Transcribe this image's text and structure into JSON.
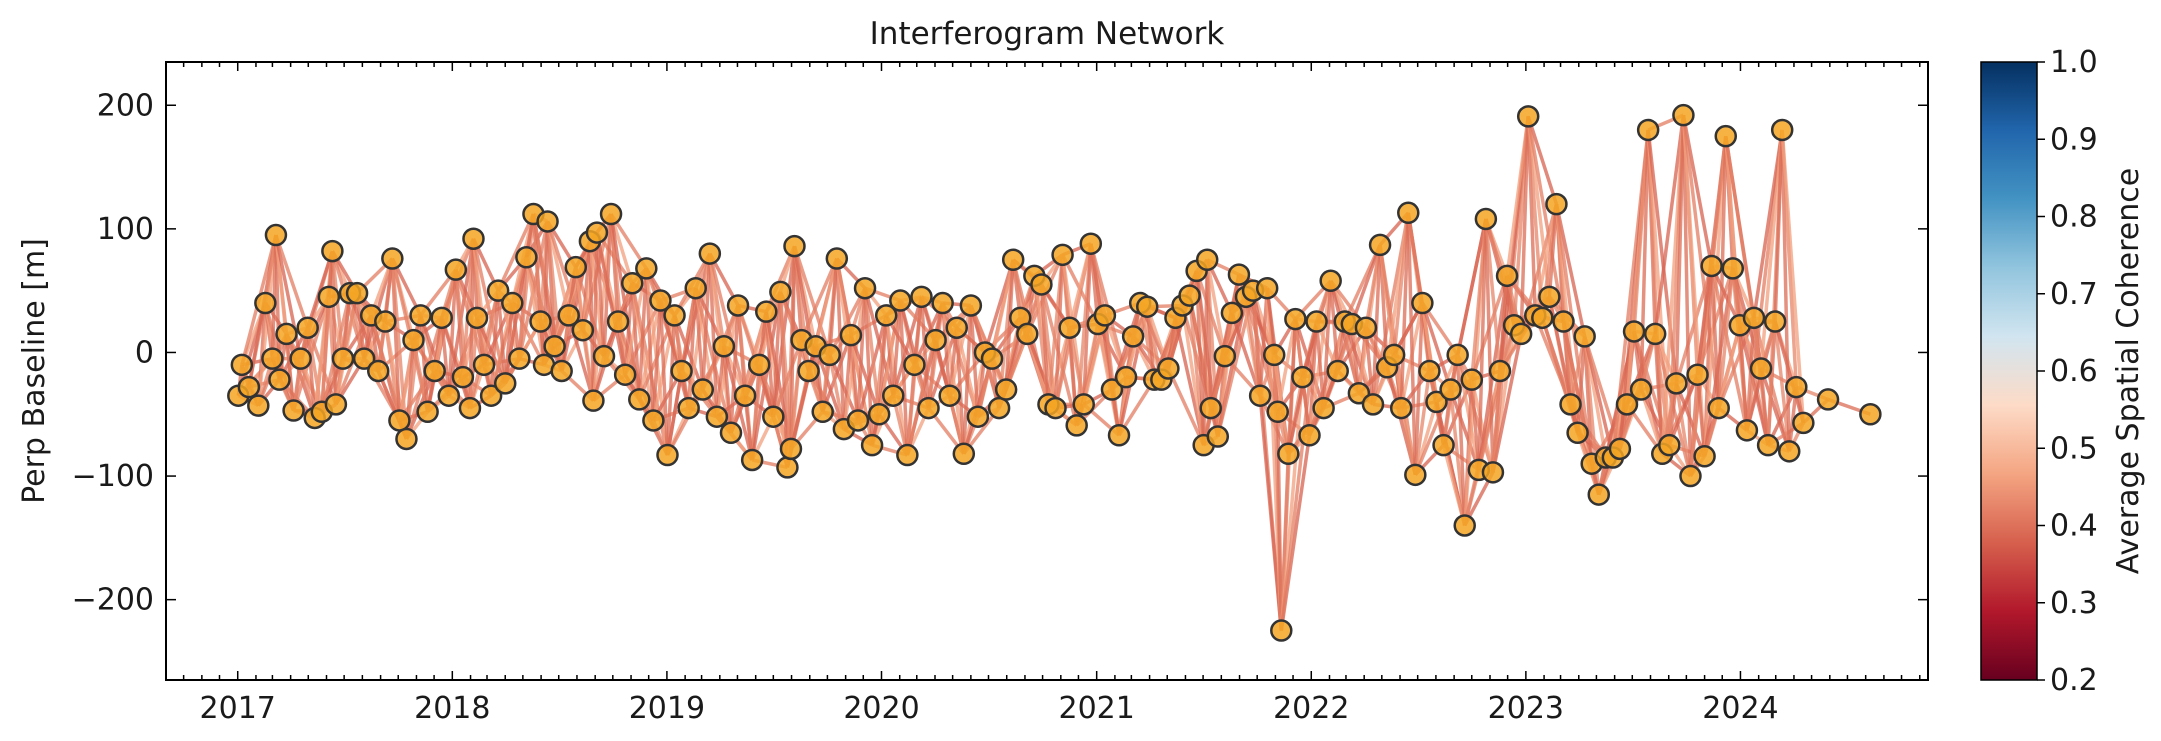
{
  "chart_data": {
    "type": "scatter",
    "title": "Interferogram Network",
    "xlabel": "",
    "ylabel": "Perp Baseline [m]",
    "x_tick_labels": [
      "2017",
      "2018",
      "2019",
      "2020",
      "2021",
      "2022",
      "2023",
      "2024"
    ],
    "y_tick_labels": [
      "200",
      "100",
      "0",
      "−100",
      "−200"
    ],
    "ylim": [
      -265,
      235
    ],
    "xlim": [
      "2016-09-01",
      "2024-11-15"
    ],
    "grid": false,
    "legend": "none",
    "marker_color": "#f5a623",
    "marker_edge_color": "#333333",
    "colorbar": {
      "label": "Average Spatial Coherence",
      "range": [
        0.2,
        1.0
      ],
      "tick_labels": [
        "0.2",
        "0.3",
        "0.4",
        "0.5",
        "0.6",
        "0.7",
        "0.8",
        "0.9",
        "1.0"
      ],
      "colormap": "RdBu",
      "colormap_stops": [
        "#67001f",
        "#b2182b",
        "#d6604d",
        "#f4a582",
        "#fddbc7",
        "#d1e5f0",
        "#92c5de",
        "#4393c3",
        "#2166ac",
        "#053061"
      ]
    },
    "acquisitions": [
      {
        "date": "2017-01-02",
        "y": -35
      },
      {
        "date": "2017-01-08",
        "y": -10
      },
      {
        "date": "2017-01-20",
        "y": -28
      },
      {
        "date": "2017-02-05",
        "y": -43
      },
      {
        "date": "2017-02-17",
        "y": 40
      },
      {
        "date": "2017-03-01",
        "y": -5
      },
      {
        "date": "2017-03-07",
        "y": 95
      },
      {
        "date": "2017-03-13",
        "y": -22
      },
      {
        "date": "2017-03-25",
        "y": 15
      },
      {
        "date": "2017-04-06",
        "y": -47
      },
      {
        "date": "2017-04-18",
        "y": -5
      },
      {
        "date": "2017-04-30",
        "y": 20
      },
      {
        "date": "2017-05-12",
        "y": -53
      },
      {
        "date": "2017-05-24",
        "y": -48
      },
      {
        "date": "2017-06-05",
        "y": 45
      },
      {
        "date": "2017-06-11",
        "y": 82
      },
      {
        "date": "2017-06-17",
        "y": -42
      },
      {
        "date": "2017-06-29",
        "y": -5
      },
      {
        "date": "2017-07-11",
        "y": 48
      },
      {
        "date": "2017-07-23",
        "y": 48
      },
      {
        "date": "2017-08-04",
        "y": -5
      },
      {
        "date": "2017-08-16",
        "y": 30
      },
      {
        "date": "2017-08-28",
        "y": -15
      },
      {
        "date": "2017-09-09",
        "y": 25
      },
      {
        "date": "2017-09-21",
        "y": 76
      },
      {
        "date": "2017-10-03",
        "y": -55
      },
      {
        "date": "2017-10-15",
        "y": -70
      },
      {
        "date": "2017-10-27",
        "y": 10
      },
      {
        "date": "2017-11-08",
        "y": 30
      },
      {
        "date": "2017-11-20",
        "y": -48
      },
      {
        "date": "2017-12-02",
        "y": -15
      },
      {
        "date": "2017-12-14",
        "y": 28
      },
      {
        "date": "2017-12-26",
        "y": -35
      },
      {
        "date": "2018-01-07",
        "y": 67
      },
      {
        "date": "2018-01-19",
        "y": -20
      },
      {
        "date": "2018-01-31",
        "y": -45
      },
      {
        "date": "2018-02-06",
        "y": 92
      },
      {
        "date": "2018-02-12",
        "y": 28
      },
      {
        "date": "2018-02-24",
        "y": -10
      },
      {
        "date": "2018-03-08",
        "y": -35
      },
      {
        "date": "2018-03-20",
        "y": 50
      },
      {
        "date": "2018-04-01",
        "y": -25
      },
      {
        "date": "2018-04-13",
        "y": 40
      },
      {
        "date": "2018-04-25",
        "y": -5
      },
      {
        "date": "2018-05-07",
        "y": 77
      },
      {
        "date": "2018-05-19",
        "y": 112
      },
      {
        "date": "2018-05-31",
        "y": 25
      },
      {
        "date": "2018-06-06",
        "y": -10
      },
      {
        "date": "2018-06-12",
        "y": 106
      },
      {
        "date": "2018-06-24",
        "y": 5
      },
      {
        "date": "2018-07-06",
        "y": -15
      },
      {
        "date": "2018-07-18",
        "y": 30
      },
      {
        "date": "2018-07-30",
        "y": 69
      },
      {
        "date": "2018-08-11",
        "y": 18
      },
      {
        "date": "2018-08-23",
        "y": 90
      },
      {
        "date": "2018-08-29",
        "y": -39
      },
      {
        "date": "2018-09-04",
        "y": 97
      },
      {
        "date": "2018-09-16",
        "y": -3
      },
      {
        "date": "2018-09-28",
        "y": 112
      },
      {
        "date": "2018-10-10",
        "y": 25
      },
      {
        "date": "2018-10-22",
        "y": -18
      },
      {
        "date": "2018-11-03",
        "y": 56
      },
      {
        "date": "2018-11-15",
        "y": -38
      },
      {
        "date": "2018-11-27",
        "y": 68
      },
      {
        "date": "2018-12-09",
        "y": -55
      },
      {
        "date": "2018-12-21",
        "y": 42
      },
      {
        "date": "2019-01-02",
        "y": -83
      },
      {
        "date": "2019-01-14",
        "y": 30
      },
      {
        "date": "2019-01-26",
        "y": -15
      },
      {
        "date": "2019-02-07",
        "y": -45
      },
      {
        "date": "2019-02-19",
        "y": 52
      },
      {
        "date": "2019-03-03",
        "y": -30
      },
      {
        "date": "2019-03-15",
        "y": 80
      },
      {
        "date": "2019-03-27",
        "y": -52
      },
      {
        "date": "2019-04-08",
        "y": 5
      },
      {
        "date": "2019-04-20",
        "y": -65
      },
      {
        "date": "2019-05-02",
        "y": 38
      },
      {
        "date": "2019-05-14",
        "y": -35
      },
      {
        "date": "2019-05-26",
        "y": -87
      },
      {
        "date": "2019-06-07",
        "y": -10
      },
      {
        "date": "2019-06-19",
        "y": 33
      },
      {
        "date": "2019-07-01",
        "y": -52
      },
      {
        "date": "2019-07-13",
        "y": 49
      },
      {
        "date": "2019-07-25",
        "y": -93
      },
      {
        "date": "2019-07-31",
        "y": -78
      },
      {
        "date": "2019-08-06",
        "y": 86
      },
      {
        "date": "2019-08-18",
        "y": 10
      },
      {
        "date": "2019-08-30",
        "y": -15
      },
      {
        "date": "2019-09-11",
        "y": 5
      },
      {
        "date": "2019-09-23",
        "y": -48
      },
      {
        "date": "2019-10-05",
        "y": -2
      },
      {
        "date": "2019-10-17",
        "y": 76
      },
      {
        "date": "2019-10-29",
        "y": -62
      },
      {
        "date": "2019-11-10",
        "y": 14
      },
      {
        "date": "2019-11-22",
        "y": -55
      },
      {
        "date": "2019-12-04",
        "y": 52
      },
      {
        "date": "2019-12-16",
        "y": -75
      },
      {
        "date": "2019-12-28",
        "y": -50
      },
      {
        "date": "2020-01-09",
        "y": 30
      },
      {
        "date": "2020-01-21",
        "y": -35
      },
      {
        "date": "2020-02-02",
        "y": 42
      },
      {
        "date": "2020-02-14",
        "y": -83
      },
      {
        "date": "2020-02-26",
        "y": -10
      },
      {
        "date": "2020-03-09",
        "y": 45
      },
      {
        "date": "2020-03-21",
        "y": -45
      },
      {
        "date": "2020-04-02",
        "y": 10
      },
      {
        "date": "2020-04-14",
        "y": 40
      },
      {
        "date": "2020-04-26",
        "y": -35
      },
      {
        "date": "2020-05-08",
        "y": 20
      },
      {
        "date": "2020-05-20",
        "y": -82
      },
      {
        "date": "2020-06-01",
        "y": 38
      },
      {
        "date": "2020-06-13",
        "y": -52
      },
      {
        "date": "2020-06-25",
        "y": 0
      },
      {
        "date": "2020-07-07",
        "y": -5
      },
      {
        "date": "2020-07-19",
        "y": -45
      },
      {
        "date": "2020-07-31",
        "y": -30
      },
      {
        "date": "2020-08-12",
        "y": 75
      },
      {
        "date": "2020-08-24",
        "y": 28
      },
      {
        "date": "2020-09-05",
        "y": 15
      },
      {
        "date": "2020-09-17",
        "y": 62
      },
      {
        "date": "2020-09-29",
        "y": 55
      },
      {
        "date": "2020-10-11",
        "y": -42
      },
      {
        "date": "2020-10-23",
        "y": -45
      },
      {
        "date": "2020-11-04",
        "y": 79
      },
      {
        "date": "2020-11-16",
        "y": 20
      },
      {
        "date": "2020-11-28",
        "y": -59
      },
      {
        "date": "2020-12-10",
        "y": -42
      },
      {
        "date": "2020-12-22",
        "y": 88
      },
      {
        "date": "2021-01-03",
        "y": 23
      },
      {
        "date": "2021-01-15",
        "y": 30
      },
      {
        "date": "2021-01-27",
        "y": -30
      },
      {
        "date": "2021-02-08",
        "y": -67
      },
      {
        "date": "2021-02-20",
        "y": -20
      },
      {
        "date": "2021-03-04",
        "y": 13
      },
      {
        "date": "2021-03-16",
        "y": 40
      },
      {
        "date": "2021-03-28",
        "y": 37
      },
      {
        "date": "2021-04-09",
        "y": -22
      },
      {
        "date": "2021-04-21",
        "y": -22
      },
      {
        "date": "2021-05-03",
        "y": -13
      },
      {
        "date": "2021-05-15",
        "y": 28
      },
      {
        "date": "2021-05-27",
        "y": 38
      },
      {
        "date": "2021-06-08",
        "y": 46
      },
      {
        "date": "2021-06-20",
        "y": 66
      },
      {
        "date": "2021-07-02",
        "y": -75
      },
      {
        "date": "2021-07-08",
        "y": 75
      },
      {
        "date": "2021-07-14",
        "y": -45
      },
      {
        "date": "2021-07-26",
        "y": -68
      },
      {
        "date": "2021-08-07",
        "y": -3
      },
      {
        "date": "2021-08-19",
        "y": 32
      },
      {
        "date": "2021-08-31",
        "y": 63
      },
      {
        "date": "2021-09-12",
        "y": 45
      },
      {
        "date": "2021-09-24",
        "y": 50
      },
      {
        "date": "2021-10-06",
        "y": -35
      },
      {
        "date": "2021-10-18",
        "y": 52
      },
      {
        "date": "2021-10-30",
        "y": -2
      },
      {
        "date": "2021-11-05",
        "y": -48
      },
      {
        "date": "2021-11-11",
        "y": -225
      },
      {
        "date": "2021-11-23",
        "y": -82
      },
      {
        "date": "2021-12-05",
        "y": 27
      },
      {
        "date": "2021-12-17",
        "y": -20
      },
      {
        "date": "2021-12-29",
        "y": -67
      },
      {
        "date": "2022-01-10",
        "y": 25
      },
      {
        "date": "2022-01-22",
        "y": -45
      },
      {
        "date": "2022-02-03",
        "y": 58
      },
      {
        "date": "2022-02-15",
        "y": -15
      },
      {
        "date": "2022-02-27",
        "y": 25
      },
      {
        "date": "2022-03-11",
        "y": 23
      },
      {
        "date": "2022-03-23",
        "y": -33
      },
      {
        "date": "2022-04-04",
        "y": 20
      },
      {
        "date": "2022-04-16",
        "y": -42
      },
      {
        "date": "2022-04-28",
        "y": 87
      },
      {
        "date": "2022-05-10",
        "y": -12
      },
      {
        "date": "2022-05-22",
        "y": -2
      },
      {
        "date": "2022-06-03",
        "y": -45
      },
      {
        "date": "2022-06-15",
        "y": 113
      },
      {
        "date": "2022-06-27",
        "y": -99
      },
      {
        "date": "2022-07-09",
        "y": 40
      },
      {
        "date": "2022-07-21",
        "y": -15
      },
      {
        "date": "2022-08-02",
        "y": -40
      },
      {
        "date": "2022-08-14",
        "y": -75
      },
      {
        "date": "2022-08-26",
        "y": -30
      },
      {
        "date": "2022-09-07",
        "y": -2
      },
      {
        "date": "2022-09-19",
        "y": -140
      },
      {
        "date": "2022-10-01",
        "y": -22
      },
      {
        "date": "2022-10-13",
        "y": -95
      },
      {
        "date": "2022-10-25",
        "y": 108
      },
      {
        "date": "2022-11-06",
        "y": -97
      },
      {
        "date": "2022-11-18",
        "y": -15
      },
      {
        "date": "2022-11-30",
        "y": 62
      },
      {
        "date": "2022-12-12",
        "y": 22
      },
      {
        "date": "2022-12-24",
        "y": 15
      },
      {
        "date": "2023-01-05",
        "y": 191
      },
      {
        "date": "2023-01-17",
        "y": 30
      },
      {
        "date": "2023-01-29",
        "y": 28
      },
      {
        "date": "2023-02-10",
        "y": 45
      },
      {
        "date": "2023-02-22",
        "y": 120
      },
      {
        "date": "2023-03-06",
        "y": 25
      },
      {
        "date": "2023-03-18",
        "y": -42
      },
      {
        "date": "2023-03-30",
        "y": -65
      },
      {
        "date": "2023-04-11",
        "y": 13
      },
      {
        "date": "2023-04-23",
        "y": -90
      },
      {
        "date": "2023-05-05",
        "y": -115
      },
      {
        "date": "2023-05-17",
        "y": -85
      },
      {
        "date": "2023-05-29",
        "y": -85
      },
      {
        "date": "2023-06-10",
        "y": -78
      },
      {
        "date": "2023-06-22",
        "y": -42
      },
      {
        "date": "2023-07-04",
        "y": 17
      },
      {
        "date": "2023-07-16",
        "y": -30
      },
      {
        "date": "2023-07-28",
        "y": 180
      },
      {
        "date": "2023-08-09",
        "y": 15
      },
      {
        "date": "2023-08-21",
        "y": -82
      },
      {
        "date": "2023-09-02",
        "y": -75
      },
      {
        "date": "2023-09-14",
        "y": -25
      },
      {
        "date": "2023-09-26",
        "y": 192
      },
      {
        "date": "2023-10-08",
        "y": -100
      },
      {
        "date": "2023-10-20",
        "y": -18
      },
      {
        "date": "2023-11-01",
        "y": -84
      },
      {
        "date": "2023-11-13",
        "y": 70
      },
      {
        "date": "2023-11-25",
        "y": -45
      },
      {
        "date": "2023-12-07",
        "y": 175
      },
      {
        "date": "2023-12-19",
        "y": 68
      },
      {
        "date": "2023-12-31",
        "y": 22
      },
      {
        "date": "2024-01-12",
        "y": -63
      },
      {
        "date": "2024-01-24",
        "y": 28
      },
      {
        "date": "2024-02-05",
        "y": -13
      },
      {
        "date": "2024-02-17",
        "y": -75
      },
      {
        "date": "2024-02-29",
        "y": 25
      },
      {
        "date": "2024-03-12",
        "y": 180
      },
      {
        "date": "2024-03-24",
        "y": -80
      },
      {
        "date": "2024-04-05",
        "y": -28
      },
      {
        "date": "2024-04-17",
        "y": -57
      },
      {
        "date": "2024-05-29",
        "y": -38
      },
      {
        "date": "2024-08-09",
        "y": -50
      }
    ]
  }
}
